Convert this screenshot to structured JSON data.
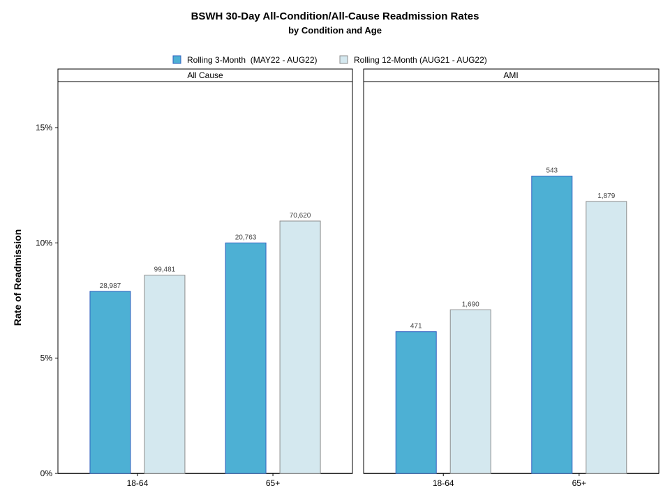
{
  "chart_data": {
    "type": "bar",
    "title": "BSWH 30-Day All-Condition/All-Cause Readmission Rates",
    "subtitle": "by Condition and Age",
    "ylabel": "Rate of Readmission",
    "ylim": [
      0,
      17
    ],
    "yticks": [
      0,
      5,
      10,
      15
    ],
    "ytick_labels": [
      "0%",
      "5%",
      "10%",
      "15%"
    ],
    "legend_position": "top-center",
    "series": [
      {
        "name": "Rolling 3-Month  (MAY22 - AUG22)",
        "color": "#4db0d4",
        "stroke": "#2f5fbf"
      },
      {
        "name": "Rolling 12-Month (AUG21 - AUG22)",
        "color": "#d4e8ef",
        "stroke": "#8c8c8c"
      }
    ],
    "panels": [
      {
        "strip": "All Cause",
        "categories": [
          "18-64",
          "65+"
        ],
        "values": [
          [
            7.9,
            10.0
          ],
          [
            8.6,
            10.95
          ]
        ],
        "labels": [
          [
            "28,987",
            "20,763"
          ],
          [
            "99,481",
            "70,620"
          ]
        ]
      },
      {
        "strip": "AMI",
        "categories": [
          "18-64",
          "65+"
        ],
        "values": [
          [
            6.15,
            12.9
          ],
          [
            7.1,
            11.8
          ]
        ],
        "labels": [
          [
            "471",
            "543"
          ],
          [
            "1,690",
            "1,879"
          ]
        ]
      }
    ]
  }
}
